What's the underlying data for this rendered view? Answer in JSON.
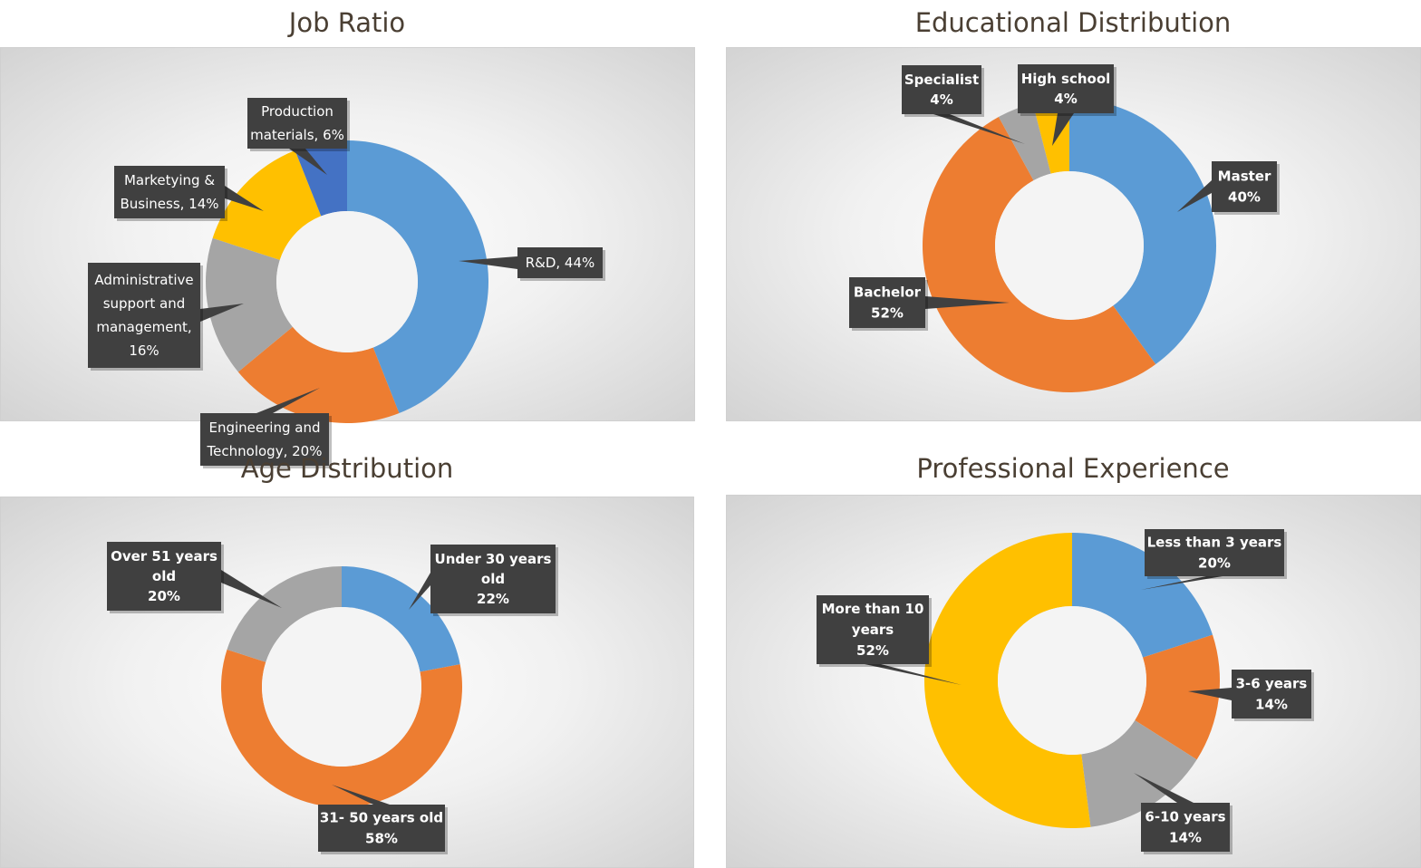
{
  "colors": {
    "blue": "#5b9bd5",
    "orange": "#ed7d31",
    "gray": "#a5a5a5",
    "yellow": "#ffc000",
    "darkblue": "#4472c4",
    "callout": "#404040"
  },
  "chart_data": [
    {
      "type": "pie",
      "title": "Job Ratio",
      "labels": [
        "R&D",
        "Engineering and Technology",
        "Administrative support and management",
        "Marketying & Business",
        "Production materials"
      ],
      "values": [
        44,
        20,
        16,
        14,
        6
      ],
      "colors": [
        "#5b9bd5",
        "#ed7d31",
        "#a5a5a5",
        "#ffc000",
        "#4472c4"
      ],
      "data_labels": [
        [
          "R&D, 44%"
        ],
        [
          "Engineering and",
          "Technology, 20%"
        ],
        [
          "Administrative",
          "support and",
          "management,",
          "16%"
        ],
        [
          "Marketying &",
          "Business, 14%"
        ],
        [
          "Production",
          "materials, 6%"
        ]
      ]
    },
    {
      "type": "pie",
      "title": "Educational Distribution",
      "labels": [
        "Master",
        "Bachelor",
        "Specialist",
        "High school"
      ],
      "values": [
        40,
        52,
        4,
        4
      ],
      "colors": [
        "#5b9bd5",
        "#ed7d31",
        "#a5a5a5",
        "#ffc000"
      ],
      "data_labels": [
        [
          "Master",
          "40%"
        ],
        [
          "Bachelor",
          "52%"
        ],
        [
          "Specialist",
          "4%"
        ],
        [
          "High school",
          "4%"
        ]
      ]
    },
    {
      "type": "pie",
      "title": "Age Distribution",
      "labels": [
        "Under 30 years old",
        "31- 50 years old",
        "Over 51 years old"
      ],
      "values": [
        22,
        58,
        20
      ],
      "colors": [
        "#5b9bd5",
        "#ed7d31",
        "#a5a5a5"
      ],
      "data_labels": [
        [
          "Under 30 years",
          "old",
          "22%"
        ],
        [
          "31- 50 years old",
          "58%"
        ],
        [
          "Over 51 years",
          "old",
          "20%"
        ]
      ]
    },
    {
      "type": "pie",
      "title": "Professional Experience",
      "labels": [
        "Less than 3 years",
        "3-6 years",
        "6-10 years",
        "More than 10 years"
      ],
      "values": [
        20,
        14,
        14,
        52
      ],
      "colors": [
        "#5b9bd5",
        "#ed7d31",
        "#a5a5a5",
        "#ffc000"
      ],
      "data_labels": [
        [
          "Less than 3 years",
          "20%"
        ],
        [
          "3-6 years",
          "14%"
        ],
        [
          "6-10 years",
          "14%"
        ],
        [
          "More than 10",
          "years",
          "52%"
        ]
      ]
    }
  ]
}
